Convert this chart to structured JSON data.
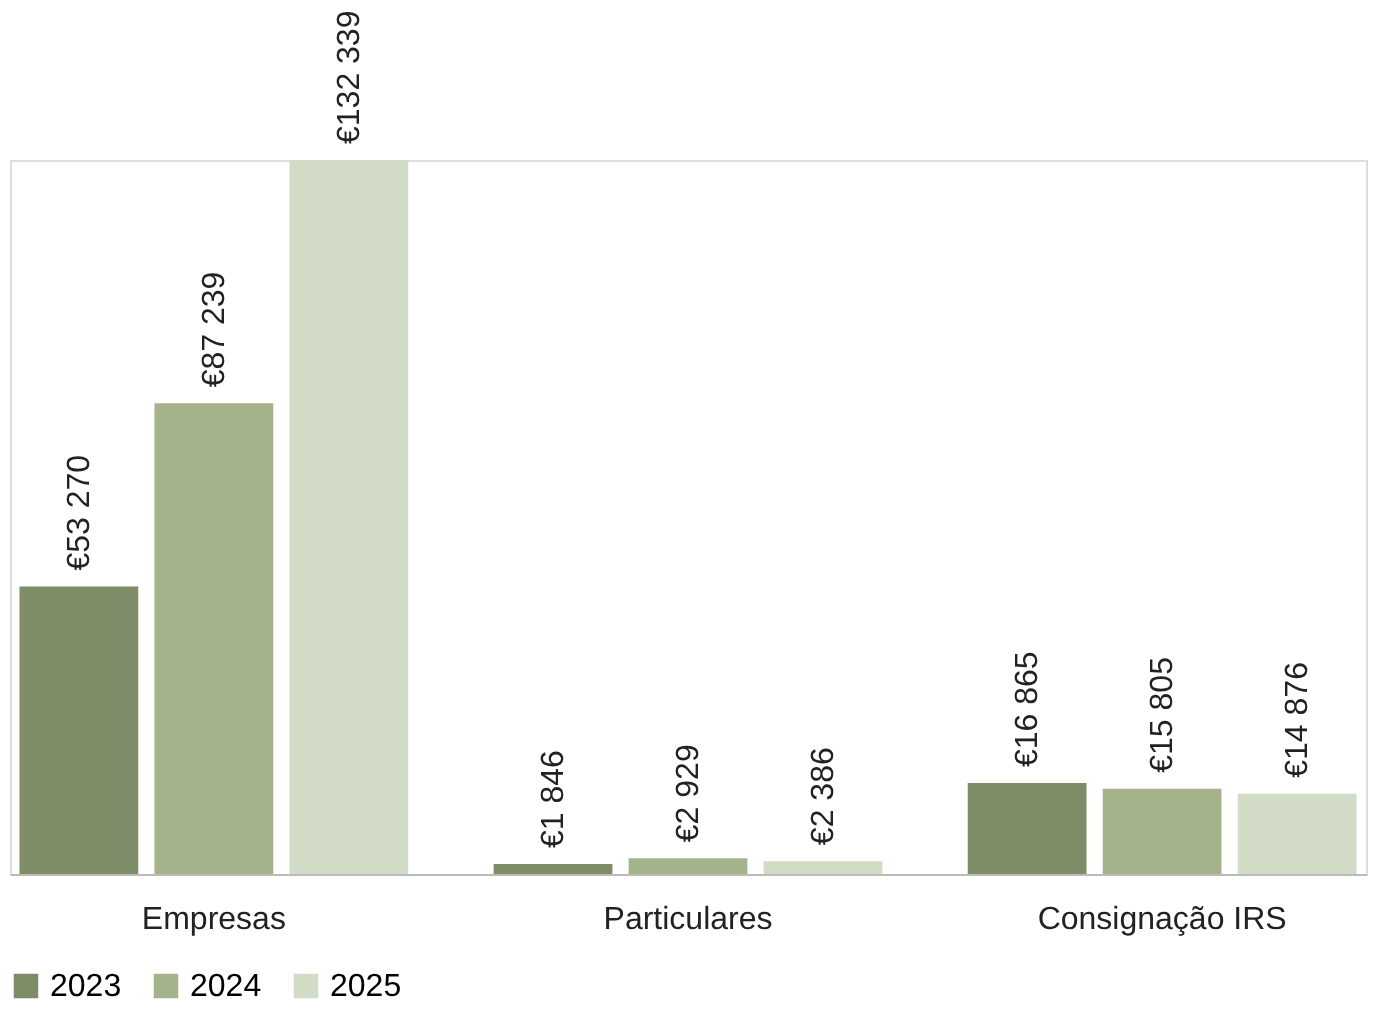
{
  "chart_data": {
    "type": "bar",
    "categories": [
      "Empresas",
      "Particulares",
      "Consignação IRS"
    ],
    "series": [
      {
        "name": "2023",
        "color": "#7e8c68",
        "values": [
          53270,
          1846,
          16865
        ],
        "value_labels": [
          "€53 270",
          "€1 846",
          "€16 865"
        ]
      },
      {
        "name": "2024",
        "color": "#a4b38a",
        "values": [
          87239,
          2929,
          15805
        ],
        "value_labels": [
          "€87 239",
          "€2 929",
          "€15 805"
        ]
      },
      {
        "name": "2025",
        "color": "#d2dbc5",
        "values": [
          132339,
          2386,
          14876
        ],
        "value_labels": [
          "€132 339",
          "€2 386",
          "€14 876"
        ]
      }
    ],
    "legend": "bottom",
    "grid": false
  }
}
